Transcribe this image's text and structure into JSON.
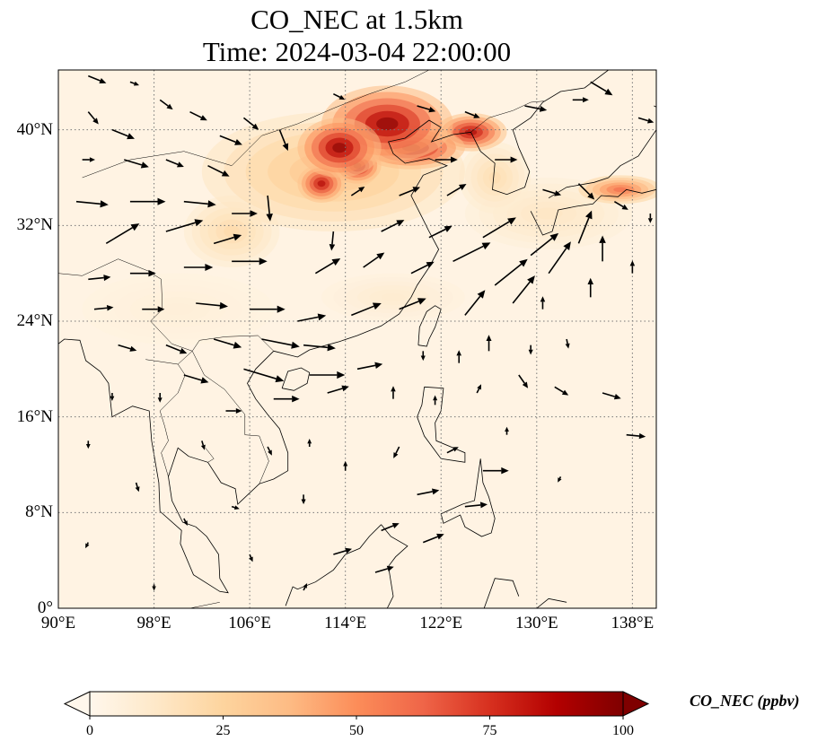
{
  "title": {
    "line1": "CO_NEC at 1.5km",
    "line2": "Time: 2024-03-04 22:00:00"
  },
  "map": {
    "projection": "PlateCarree",
    "lon_range": [
      90,
      140
    ],
    "lat_range": [
      0,
      45
    ],
    "gridlines": "dotted",
    "lat_ticks": [
      {
        "value": 40,
        "label": "40°N"
      },
      {
        "value": 32,
        "label": "32°N"
      },
      {
        "value": 24,
        "label": "24°N"
      },
      {
        "value": 16,
        "label": "16°N"
      },
      {
        "value": 8,
        "label": "8°N"
      },
      {
        "value": 0,
        "label": "0°"
      }
    ],
    "lon_ticks": [
      {
        "value": 90,
        "label": "90°E"
      },
      {
        "value": 98,
        "label": "98°E"
      },
      {
        "value": 106,
        "label": "106°E"
      },
      {
        "value": 114,
        "label": "114°E"
      },
      {
        "value": 122,
        "label": "122°E"
      },
      {
        "value": 130,
        "label": "130°E"
      },
      {
        "value": 138,
        "label": "138°E"
      }
    ],
    "field": {
      "variable": "CO_NEC",
      "units": "ppbv",
      "colormap": "OrRd",
      "background_value": 3,
      "plumes": [
        {
          "lon": 117.5,
          "lat": 40.5,
          "rx": 5.5,
          "ry": 3.2,
          "value": 100
        },
        {
          "lon": 113.5,
          "lat": 38.5,
          "rx": 3.5,
          "ry": 2.5,
          "value": 100
        },
        {
          "lon": 119.5,
          "lat": 38.5,
          "rx": 4.5,
          "ry": 1.8,
          "value": 95
        },
        {
          "lon": 124.5,
          "lat": 39.8,
          "rx": 3.0,
          "ry": 1.6,
          "value": 92
        },
        {
          "lon": 112.0,
          "lat": 35.5,
          "rx": 2.0,
          "ry": 1.6,
          "value": 90
        },
        {
          "lon": 115.0,
          "lat": 37.0,
          "rx": 2.0,
          "ry": 1.5,
          "value": 95
        },
        {
          "lon": 113.0,
          "lat": 36.5,
          "rx": 11.0,
          "ry": 5.0,
          "value": 35
        },
        {
          "lon": 104.5,
          "lat": 31.5,
          "rx": 4.0,
          "ry": 3.0,
          "value": 22
        },
        {
          "lon": 137.0,
          "lat": 35.0,
          "rx": 3.5,
          "ry": 1.2,
          "value": 62
        },
        {
          "lon": 126.5,
          "lat": 36.0,
          "rx": 3.0,
          "ry": 3.0,
          "value": 20
        },
        {
          "lon": 131.0,
          "lat": 33.0,
          "rx": 7.0,
          "ry": 3.0,
          "value": 14
        },
        {
          "lon": 118.0,
          "lat": 26.0,
          "rx": 6.0,
          "ry": 2.0,
          "value": 10
        },
        {
          "lon": 100.0,
          "lat": 25.0,
          "rx": 8.0,
          "ry": 3.0,
          "value": 7
        }
      ]
    },
    "wind_vectors": [
      {
        "lon": 92.5,
        "lat": 44.5,
        "u": 1.0,
        "v": -0.4,
        "len": 1.2
      },
      {
        "lon": 96.0,
        "lat": 44.0,
        "u": 0.8,
        "v": -0.3,
        "len": 0.6
      },
      {
        "lon": 92.5,
        "lat": 41.5,
        "u": 0.5,
        "v": -0.6,
        "len": 1.0
      },
      {
        "lon": 94.5,
        "lat": 40.0,
        "u": 1.0,
        "v": -0.4,
        "len": 1.5
      },
      {
        "lon": 98.5,
        "lat": 42.5,
        "u": 0.8,
        "v": -0.6,
        "len": 1.0
      },
      {
        "lon": 101.0,
        "lat": 41.5,
        "u": 1.0,
        "v": -0.5,
        "len": 1.2
      },
      {
        "lon": 103.5,
        "lat": 39.5,
        "u": 1.0,
        "v": -0.4,
        "len": 1.5
      },
      {
        "lon": 105.5,
        "lat": 41.0,
        "u": 1.0,
        "v": -0.8,
        "len": 1.2
      },
      {
        "lon": 108.5,
        "lat": 40.0,
        "u": 0.4,
        "v": -1.0,
        "len": 1.4
      },
      {
        "lon": 92.0,
        "lat": 37.5,
        "u": 1.0,
        "v": 0.0,
        "len": 0.8
      },
      {
        "lon": 95.5,
        "lat": 37.5,
        "u": 1.0,
        "v": -0.3,
        "len": 1.6
      },
      {
        "lon": 99.0,
        "lat": 37.5,
        "u": 1.0,
        "v": -0.4,
        "len": 1.2
      },
      {
        "lon": 102.5,
        "lat": 37.0,
        "u": 1.0,
        "v": -0.5,
        "len": 1.5
      },
      {
        "lon": 91.5,
        "lat": 34.0,
        "u": 1.0,
        "v": -0.1,
        "len": 2.0
      },
      {
        "lon": 96.0,
        "lat": 34.0,
        "u": 1.0,
        "v": 0.0,
        "len": 2.2
      },
      {
        "lon": 100.5,
        "lat": 34.0,
        "u": 1.0,
        "v": -0.1,
        "len": 2.0
      },
      {
        "lon": 104.5,
        "lat": 33.0,
        "u": 1.0,
        "v": 0.0,
        "len": 1.6
      },
      {
        "lon": 107.5,
        "lat": 34.5,
        "u": 0.1,
        "v": -1.0,
        "len": 1.6
      },
      {
        "lon": 94.0,
        "lat": 30.5,
        "u": 1.0,
        "v": 0.6,
        "len": 2.4
      },
      {
        "lon": 99.0,
        "lat": 31.5,
        "u": 1.0,
        "v": 0.3,
        "len": 2.4
      },
      {
        "lon": 103.0,
        "lat": 30.5,
        "u": 1.0,
        "v": 0.3,
        "len": 1.8
      },
      {
        "lon": 92.5,
        "lat": 27.5,
        "u": 1.0,
        "v": 0.1,
        "len": 1.4
      },
      {
        "lon": 96.0,
        "lat": 28.0,
        "u": 1.0,
        "v": 0.0,
        "len": 1.6
      },
      {
        "lon": 100.5,
        "lat": 28.5,
        "u": 1.0,
        "v": 0.0,
        "len": 1.8
      },
      {
        "lon": 104.5,
        "lat": 29.0,
        "u": 1.0,
        "v": 0.0,
        "len": 2.2
      },
      {
        "lon": 93.0,
        "lat": 25.0,
        "u": 1.0,
        "v": 0.1,
        "len": 1.2
      },
      {
        "lon": 97.0,
        "lat": 25.0,
        "u": 1.0,
        "v": 0.0,
        "len": 1.4
      },
      {
        "lon": 101.5,
        "lat": 25.5,
        "u": 1.0,
        "v": -0.1,
        "len": 2.0
      },
      {
        "lon": 106.0,
        "lat": 25.0,
        "u": 1.0,
        "v": 0.0,
        "len": 2.2
      },
      {
        "lon": 95.0,
        "lat": 22.0,
        "u": 1.0,
        "v": -0.3,
        "len": 1.2
      },
      {
        "lon": 99.0,
        "lat": 22.0,
        "u": 1.0,
        "v": -0.4,
        "len": 1.4
      },
      {
        "lon": 103.0,
        "lat": 22.5,
        "u": 1.0,
        "v": -0.3,
        "len": 1.8
      },
      {
        "lon": 107.0,
        "lat": 22.5,
        "u": 1.0,
        "v": -0.2,
        "len": 2.4
      },
      {
        "lon": 110.5,
        "lat": 22.0,
        "u": 1.0,
        "v": -0.1,
        "len": 2.0
      },
      {
        "lon": 100.5,
        "lat": 19.5,
        "u": 1.0,
        "v": -0.3,
        "len": 1.6
      },
      {
        "lon": 105.5,
        "lat": 20.0,
        "u": 1.0,
        "v": -0.3,
        "len": 2.6
      },
      {
        "lon": 111.0,
        "lat": 19.5,
        "u": 1.0,
        "v": 0.0,
        "len": 2.2
      },
      {
        "lon": 115.0,
        "lat": 20.0,
        "u": 1.0,
        "v": 0.2,
        "len": 1.6
      },
      {
        "lon": 104.0,
        "lat": 16.5,
        "u": 1.0,
        "v": 0.0,
        "len": 1.0
      },
      {
        "lon": 108.0,
        "lat": 17.5,
        "u": 1.0,
        "v": 0.0,
        "len": 1.6
      },
      {
        "lon": 112.5,
        "lat": 18.0,
        "u": 1.0,
        "v": 0.3,
        "len": 1.4
      },
      {
        "lon": 110.0,
        "lat": 24.0,
        "u": 1.0,
        "v": 0.2,
        "len": 1.8
      },
      {
        "lon": 114.5,
        "lat": 24.5,
        "u": 1.0,
        "v": 0.4,
        "len": 2.0
      },
      {
        "lon": 118.5,
        "lat": 25.0,
        "u": 1.0,
        "v": 0.4,
        "len": 1.8
      },
      {
        "lon": 111.5,
        "lat": 28.0,
        "u": 1.0,
        "v": 0.6,
        "len": 1.8
      },
      {
        "lon": 115.5,
        "lat": 28.5,
        "u": 1.0,
        "v": 0.7,
        "len": 1.6
      },
      {
        "lon": 119.5,
        "lat": 28.0,
        "u": 1.0,
        "v": 0.5,
        "len": 1.6
      },
      {
        "lon": 113.0,
        "lat": 31.5,
        "u": -0.1,
        "v": -1.0,
        "len": 1.2
      },
      {
        "lon": 117.0,
        "lat": 31.5,
        "u": 1.0,
        "v": 0.5,
        "len": 1.6
      },
      {
        "lon": 121.0,
        "lat": 31.0,
        "u": 1.0,
        "v": 0.5,
        "len": 1.6
      },
      {
        "lon": 114.5,
        "lat": 34.5,
        "u": 0.6,
        "v": 0.4,
        "len": 1.0
      },
      {
        "lon": 118.5,
        "lat": 34.5,
        "u": 1.0,
        "v": 0.4,
        "len": 1.4
      },
      {
        "lon": 122.5,
        "lat": 34.5,
        "u": 1.0,
        "v": 0.6,
        "len": 1.4
      },
      {
        "lon": 123.0,
        "lat": 29.0,
        "u": 1.0,
        "v": 0.5,
        "len": 2.6
      },
      {
        "lon": 125.5,
        "lat": 31.0,
        "u": 1.0,
        "v": 0.6,
        "len": 2.4
      },
      {
        "lon": 126.5,
        "lat": 27.0,
        "u": 1.0,
        "v": 0.8,
        "len": 2.6
      },
      {
        "lon": 129.5,
        "lat": 29.5,
        "u": 1.0,
        "v": 0.8,
        "len": 2.2
      },
      {
        "lon": 124.0,
        "lat": 24.5,
        "u": 0.8,
        "v": 1.0,
        "len": 2.0
      },
      {
        "lon": 128.0,
        "lat": 25.5,
        "u": 0.8,
        "v": 1.0,
        "len": 2.2
      },
      {
        "lon": 131.0,
        "lat": 28.0,
        "u": 0.7,
        "v": 1.0,
        "len": 2.4
      },
      {
        "lon": 133.5,
        "lat": 30.5,
        "u": 0.4,
        "v": 1.0,
        "len": 2.2
      },
      {
        "lon": 135.5,
        "lat": 29.0,
        "u": 0.0,
        "v": 1.0,
        "len": 1.6
      },
      {
        "lon": 134.5,
        "lat": 26.0,
        "u": 0.0,
        "v": 1.0,
        "len": 1.2
      },
      {
        "lon": 138.0,
        "lat": 28.0,
        "u": 0.0,
        "v": 1.0,
        "len": 0.8
      },
      {
        "lon": 130.5,
        "lat": 25.0,
        "u": 0.0,
        "v": 1.0,
        "len": 0.8
      },
      {
        "lon": 126.0,
        "lat": 21.5,
        "u": 0.0,
        "v": 1.0,
        "len": 1.0
      },
      {
        "lon": 129.5,
        "lat": 22.0,
        "u": 0.0,
        "v": -1.0,
        "len": 0.6
      },
      {
        "lon": 132.5,
        "lat": 22.5,
        "u": 0.2,
        "v": -1.0,
        "len": 0.6
      },
      {
        "lon": 120.5,
        "lat": 21.5,
        "u": 0.0,
        "v": -1.0,
        "len": 0.6
      },
      {
        "lon": 123.5,
        "lat": 20.5,
        "u": 0.0,
        "v": 1.0,
        "len": 0.8
      },
      {
        "lon": 128.5,
        "lat": 19.5,
        "u": 0.7,
        "v": -1.0,
        "len": 1.0
      },
      {
        "lon": 131.5,
        "lat": 18.5,
        "u": 1.0,
        "v": -0.6,
        "len": 1.0
      },
      {
        "lon": 135.5,
        "lat": 18.0,
        "u": 1.0,
        "v": -0.3,
        "len": 1.2
      },
      {
        "lon": 137.5,
        "lat": 14.5,
        "u": 1.0,
        "v": -0.1,
        "len": 1.2
      },
      {
        "lon": 118.0,
        "lat": 17.5,
        "u": 0.0,
        "v": 1.0,
        "len": 0.8
      },
      {
        "lon": 121.5,
        "lat": 17.0,
        "u": 0.0,
        "v": 1.0,
        "len": 0.6
      },
      {
        "lon": 125.0,
        "lat": 18.0,
        "u": 0.5,
        "v": 1.0,
        "len": 0.6
      },
      {
        "lon": 118.5,
        "lat": 13.5,
        "u": -0.5,
        "v": -1.0,
        "len": 0.8
      },
      {
        "lon": 122.5,
        "lat": 13.0,
        "u": 1.0,
        "v": 0.5,
        "len": 0.8
      },
      {
        "lon": 125.5,
        "lat": 11.5,
        "u": 1.0,
        "v": 0.0,
        "len": 1.6
      },
      {
        "lon": 120.0,
        "lat": 9.5,
        "u": 1.0,
        "v": 0.2,
        "len": 1.4
      },
      {
        "lon": 124.0,
        "lat": 8.5,
        "u": 1.0,
        "v": 0.1,
        "len": 1.4
      },
      {
        "lon": 117.0,
        "lat": 6.5,
        "u": 1.0,
        "v": 0.4,
        "len": 1.2
      },
      {
        "lon": 120.5,
        "lat": 5.5,
        "u": 1.0,
        "v": 0.4,
        "len": 1.4
      },
      {
        "lon": 113.0,
        "lat": 4.5,
        "u": 1.0,
        "v": 0.3,
        "len": 1.2
      },
      {
        "lon": 116.5,
        "lat": 3.0,
        "u": 1.0,
        "v": 0.3,
        "len": 1.2
      },
      {
        "lon": 110.5,
        "lat": 9.5,
        "u": 0.0,
        "v": -1.0,
        "len": 0.6
      },
      {
        "lon": 114.0,
        "lat": 11.5,
        "u": 0.0,
        "v": 1.0,
        "len": 0.6
      },
      {
        "lon": 107.5,
        "lat": 13.5,
        "u": 0.5,
        "v": -1.0,
        "len": 0.6
      },
      {
        "lon": 111.0,
        "lat": 13.5,
        "u": 0.0,
        "v": 1.0,
        "len": 0.5
      },
      {
        "lon": 98.5,
        "lat": 18.0,
        "u": 0.0,
        "v": -1.0,
        "len": 0.6
      },
      {
        "lon": 94.5,
        "lat": 18.0,
        "u": 0.0,
        "v": -1.0,
        "len": 0.5
      },
      {
        "lon": 102.0,
        "lat": 14.0,
        "u": 0.3,
        "v": -1.0,
        "len": 0.6
      },
      {
        "lon": 92.5,
        "lat": 14.0,
        "u": 0.0,
        "v": -1.0,
        "len": 0.5
      },
      {
        "lon": 96.5,
        "lat": 10.5,
        "u": 0.3,
        "v": -1.0,
        "len": 0.6
      },
      {
        "lon": 92.5,
        "lat": 5.5,
        "u": -0.5,
        "v": -1.0,
        "len": 0.4
      },
      {
        "lon": 100.5,
        "lat": 7.5,
        "u": 0.5,
        "v": -1.0,
        "len": 0.5
      },
      {
        "lon": 104.5,
        "lat": 8.5,
        "u": 1.0,
        "v": -0.3,
        "len": 0.5
      },
      {
        "lon": 106.0,
        "lat": 4.5,
        "u": 0.4,
        "v": -1.0,
        "len": 0.5
      },
      {
        "lon": 110.5,
        "lat": 1.5,
        "u": 0.5,
        "v": 1.0,
        "len": 0.5
      },
      {
        "lon": 98.0,
        "lat": 2.0,
        "u": 0.0,
        "v": -1.0,
        "len": 0.4
      },
      {
        "lon": 127.5,
        "lat": 14.5,
        "u": 0.0,
        "v": 1.0,
        "len": 0.5
      },
      {
        "lon": 132.0,
        "lat": 11.0,
        "u": -0.5,
        "v": -1.0,
        "len": 0.4
      },
      {
        "lon": 113.0,
        "lat": 43.0,
        "u": 1.0,
        "v": -0.5,
        "len": 0.8
      },
      {
        "lon": 120.0,
        "lat": 42.0,
        "u": 1.0,
        "v": -0.3,
        "len": 1.2
      },
      {
        "lon": 124.0,
        "lat": 41.5,
        "u": 1.0,
        "v": -0.4,
        "len": 1.0
      },
      {
        "lon": 129.0,
        "lat": 42.0,
        "u": 1.0,
        "v": -0.2,
        "len": 1.4
      },
      {
        "lon": 133.0,
        "lat": 42.5,
        "u": 1.0,
        "v": 0.0,
        "len": 1.0
      },
      {
        "lon": 134.5,
        "lat": 44.0,
        "u": 1.0,
        "v": -0.6,
        "len": 1.6
      },
      {
        "lon": 138.5,
        "lat": 41.0,
        "u": 1.0,
        "v": -0.3,
        "len": 1.0
      },
      {
        "lon": 121.5,
        "lat": 37.5,
        "u": 1.0,
        "v": 0.0,
        "len": 1.4
      },
      {
        "lon": 126.5,
        "lat": 37.5,
        "u": 1.0,
        "v": 0.0,
        "len": 1.4
      },
      {
        "lon": 130.5,
        "lat": 35.0,
        "u": 1.0,
        "v": -0.3,
        "len": 1.2
      },
      {
        "lon": 133.5,
        "lat": 35.5,
        "u": 0.6,
        "v": -0.6,
        "len": 1.4
      },
      {
        "lon": 136.5,
        "lat": 34.0,
        "u": 1.0,
        "v": -0.6,
        "len": 1.0
      },
      {
        "lon": 139.5,
        "lat": 33.0,
        "u": 0.0,
        "v": -1.0,
        "len": 0.6
      }
    ]
  },
  "colorbar": {
    "label": "CO_NEC (ppbv)",
    "range": [
      0,
      100
    ],
    "ticks": [
      {
        "value": 0,
        "label": "0"
      },
      {
        "value": 25,
        "label": "25"
      },
      {
        "value": 50,
        "label": "50"
      },
      {
        "value": 75,
        "label": "75"
      },
      {
        "value": 100,
        "label": "100"
      }
    ],
    "extend": "both",
    "colors": [
      "#fff7ec",
      "#fee8c8",
      "#fdd49e",
      "#fdbb84",
      "#fc8d59",
      "#ef6548",
      "#d7301f",
      "#b30000",
      "#7f0000"
    ]
  }
}
